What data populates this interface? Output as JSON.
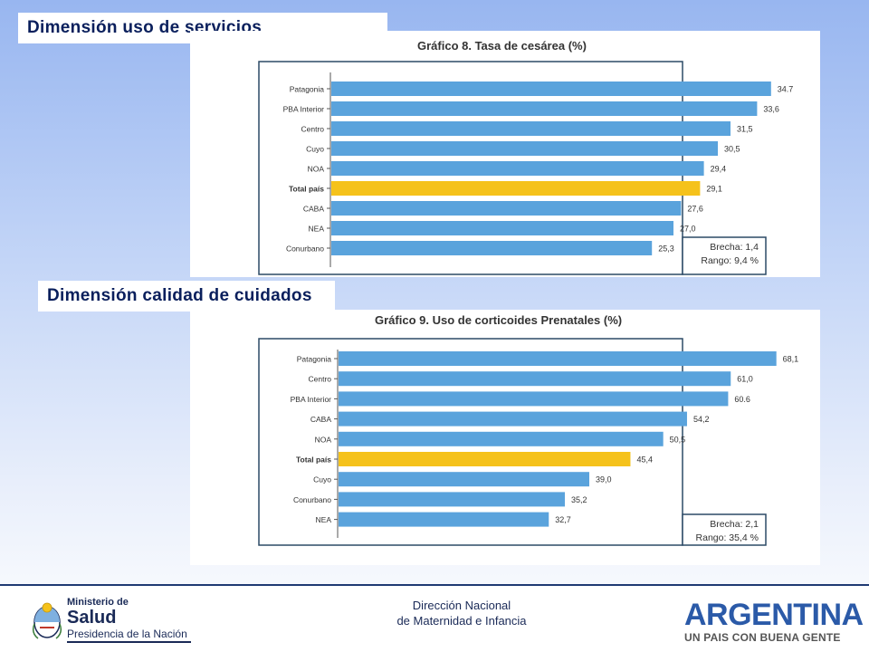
{
  "sections": {
    "services_title": "Dimensión uso de servicios",
    "care_title": "Dimensión calidad de cuidados"
  },
  "colors": {
    "bar": "#5aa3dc",
    "highlight": "#f5c21b",
    "frame": "#2c4a66"
  },
  "chart_data": [
    {
      "type": "bar",
      "orientation": "horizontal",
      "title": "Gráfico 8. Tasa de cesárea (%)",
      "categories": [
        "Patagonia",
        "PBA Interior",
        "Centro",
        "Cuyo",
        "NOA",
        "Total país",
        "CABA",
        "NEA",
        "Conurbano"
      ],
      "values": [
        34.7,
        33.6,
        31.5,
        30.5,
        29.4,
        29.1,
        27.6,
        27.0,
        25.3
      ],
      "value_labels": [
        "34.7",
        "33,6",
        "31,5",
        "30,5",
        "29,4",
        "29,1",
        "27,6",
        "27,0",
        "25,3"
      ],
      "highlight": "Total país",
      "xlim": [
        0,
        40
      ],
      "grid": false,
      "legend": {
        "brecha": "Brecha: 1,4",
        "rango": "Rango: 9,4 %"
      }
    },
    {
      "type": "bar",
      "orientation": "horizontal",
      "title": "Gráfico 9. Uso de corticoides Prenatales (%)",
      "categories": [
        "Patagonia",
        "Centro",
        "PBA Interior",
        "CABA",
        "NOA",
        "Total país",
        "Cuyo",
        "Conurbano",
        "NEA"
      ],
      "values": [
        68.1,
        61.0,
        60.6,
        54.2,
        50.5,
        45.4,
        39.0,
        35.2,
        32.7
      ],
      "value_labels": [
        "68,1",
        "61,0",
        "60.6",
        "54,2",
        "50,5",
        "45,4",
        "39,0",
        "35,2",
        "32,7"
      ],
      "highlight": "Total país",
      "xlim": [
        0,
        78
      ],
      "grid": false,
      "legend": {
        "brecha": "Brecha: 2,1",
        "rango": "Rango: 35,4 %"
      }
    }
  ],
  "footer": {
    "ministry_small": "Ministerio de",
    "ministry_big": "Salud",
    "ministry_pres": "Presidencia de la Nación",
    "center_line1": "Dirección Nacional",
    "center_line2": "de Maternidad e Infancia",
    "brand": "ARGENTINA",
    "brand_slogan": "UN PAIS CON BUENA GENTE"
  }
}
